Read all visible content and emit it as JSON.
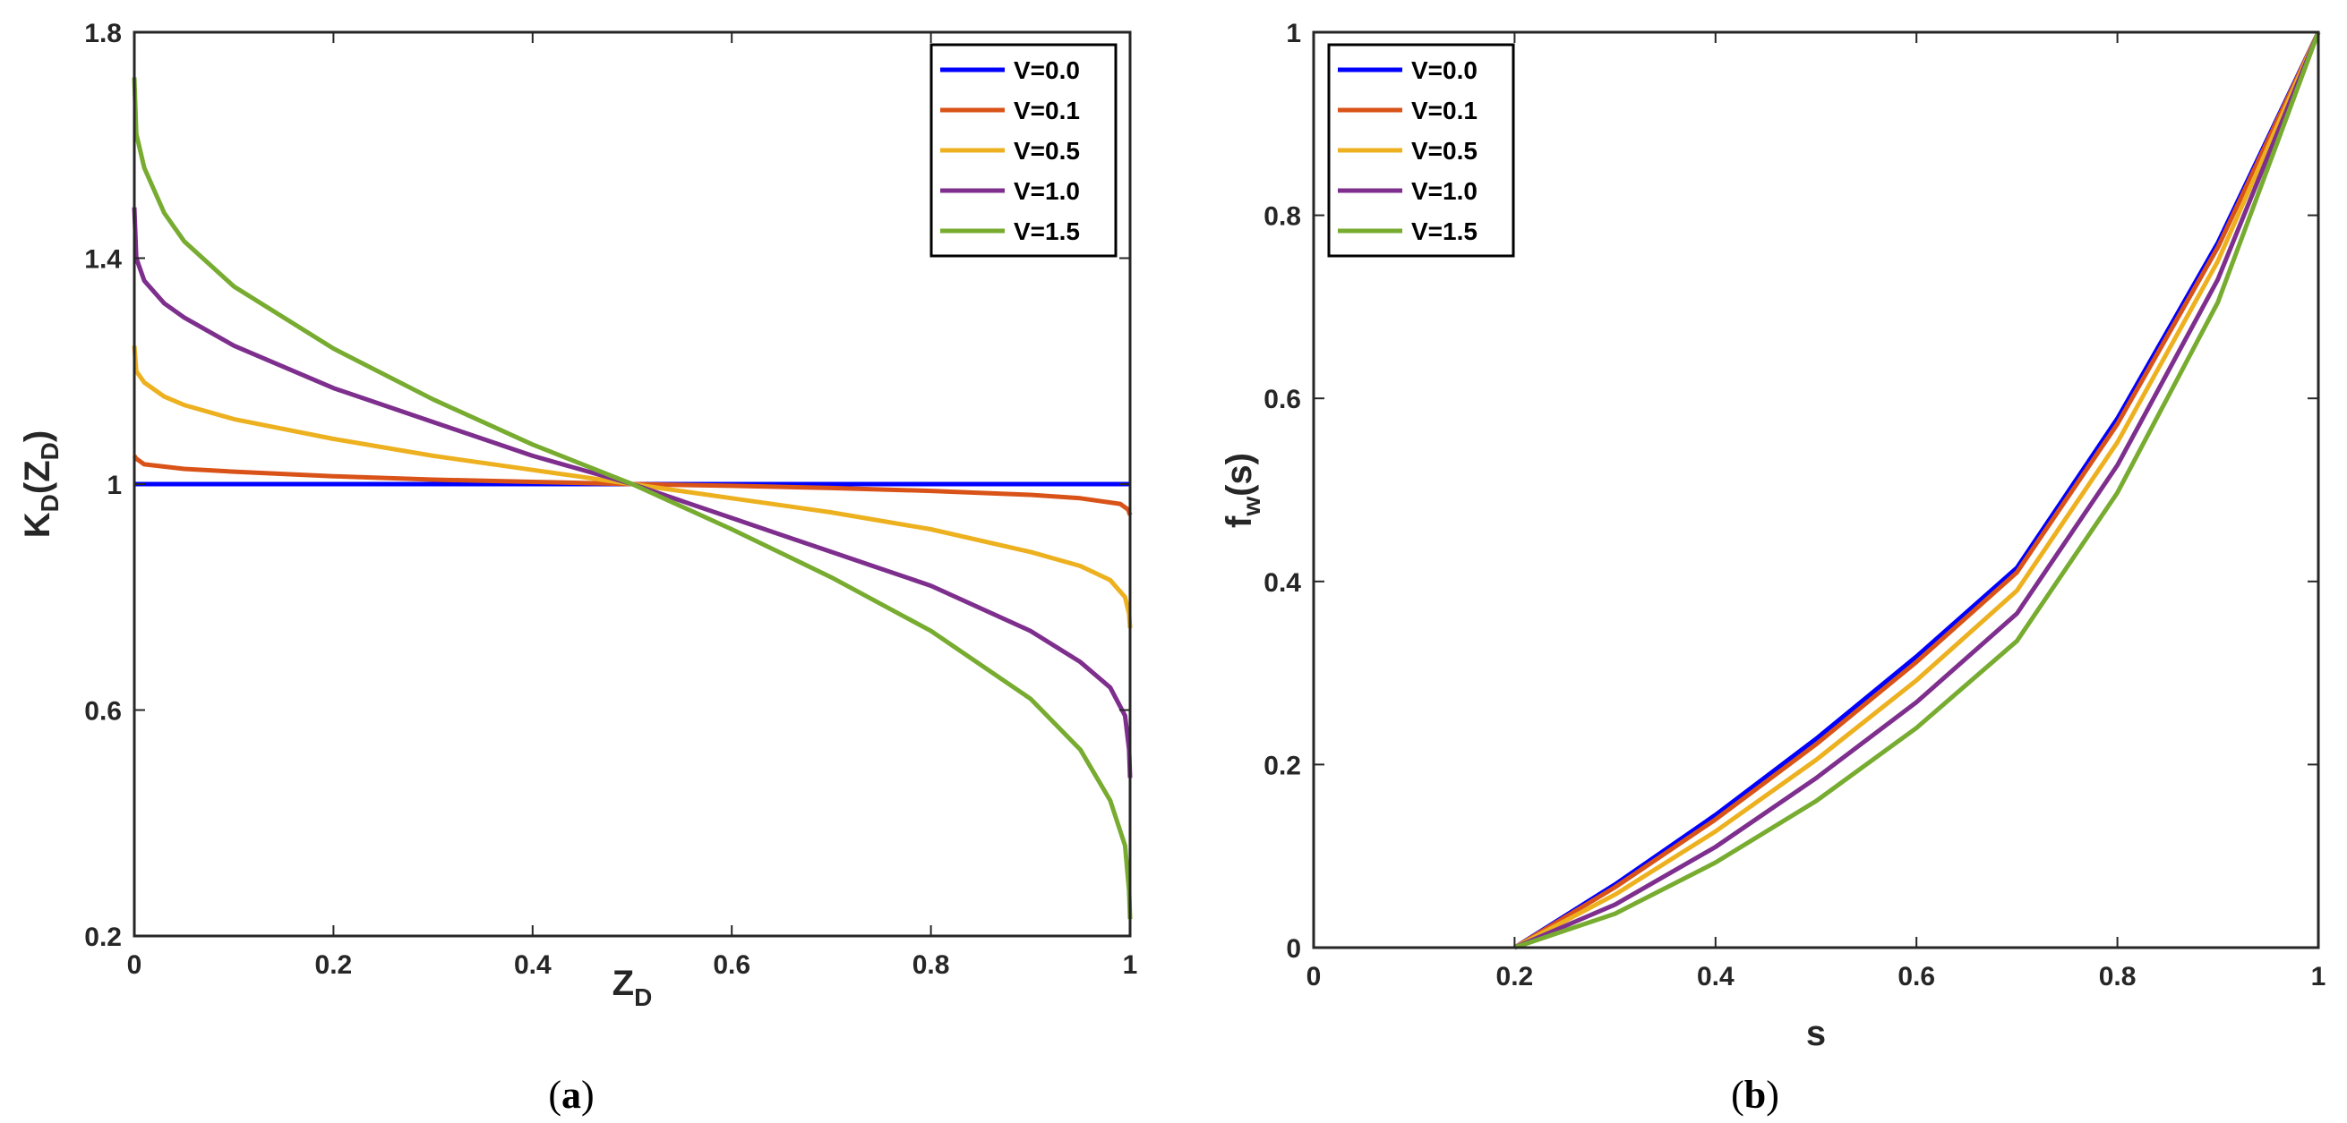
{
  "chart_data": [
    {
      "type": "line",
      "panel": "a",
      "caption_prefix": "(",
      "caption_letter": "a",
      "caption_suffix": ")",
      "xlabel_main": "Z",
      "xlabel_sub": "D",
      "ylabel_main": "K",
      "ylabel_sub": "D",
      "ylabel_open": "(Z",
      "ylabel_inner_sub": "D",
      "ylabel_close": ")",
      "xlim": [
        0,
        1
      ],
      "ylim": [
        0.2,
        1.8
      ],
      "xticks": [
        0,
        0.2,
        0.4,
        0.6,
        0.8,
        1
      ],
      "xtick_labels": [
        "0",
        "0.2",
        "0.4",
        "0.6",
        "0.8",
        "1"
      ],
      "yticks": [
        0.2,
        0.6,
        1,
        1.4,
        1.8
      ],
      "ytick_labels": [
        "0.2",
        "0.6",
        "1",
        "1.4",
        "1.8"
      ],
      "legend_position": "top-right",
      "series": [
        {
          "name": "V=0.0",
          "color": "#0000FF",
          "x": [
            0,
            0.01,
            0.05,
            0.1,
            0.2,
            0.3,
            0.4,
            0.5,
            0.6,
            0.7,
            0.8,
            0.9,
            0.95,
            0.99,
            1.0
          ],
          "values": [
            1,
            1,
            1,
            1,
            1,
            1,
            1,
            1,
            1,
            1,
            1,
            1,
            1,
            1,
            1
          ]
        },
        {
          "name": "V=0.1",
          "color": "#D95319",
          "x": [
            0,
            0.002,
            0.01,
            0.05,
            0.1,
            0.2,
            0.3,
            0.4,
            0.5,
            0.6,
            0.7,
            0.8,
            0.9,
            0.95,
            0.99,
            0.998,
            1.0
          ],
          "values": [
            1.05,
            1.045,
            1.035,
            1.027,
            1.022,
            1.014,
            1.008,
            1.004,
            1.0,
            0.997,
            0.993,
            0.988,
            0.981,
            0.975,
            0.965,
            0.955,
            0.945
          ]
        },
        {
          "name": "V=0.5",
          "color": "#EDB120",
          "x": [
            0,
            0.002,
            0.01,
            0.03,
            0.05,
            0.1,
            0.2,
            0.3,
            0.4,
            0.5,
            0.6,
            0.7,
            0.8,
            0.9,
            0.95,
            0.98,
            0.995,
            0.999,
            1.0
          ],
          "values": [
            1.245,
            1.2,
            1.18,
            1.155,
            1.14,
            1.115,
            1.08,
            1.05,
            1.025,
            1.0,
            0.975,
            0.95,
            0.92,
            0.88,
            0.855,
            0.83,
            0.8,
            0.77,
            0.745
          ]
        },
        {
          "name": "V=1.0",
          "color": "#7E2F8E",
          "x": [
            0,
            0.002,
            0.01,
            0.03,
            0.05,
            0.1,
            0.2,
            0.3,
            0.4,
            0.5,
            0.6,
            0.7,
            0.8,
            0.9,
            0.95,
            0.98,
            0.995,
            0.999,
            1.0
          ],
          "values": [
            1.49,
            1.4,
            1.36,
            1.32,
            1.295,
            1.245,
            1.17,
            1.11,
            1.05,
            1.0,
            0.94,
            0.88,
            0.82,
            0.74,
            0.685,
            0.64,
            0.59,
            0.53,
            0.48
          ]
        },
        {
          "name": "V=1.5",
          "color": "#77AC30",
          "x": [
            0,
            0.002,
            0.01,
            0.03,
            0.05,
            0.1,
            0.2,
            0.3,
            0.4,
            0.5,
            0.6,
            0.7,
            0.8,
            0.9,
            0.95,
            0.98,
            0.995,
            0.999,
            1.0
          ],
          "values": [
            1.72,
            1.62,
            1.56,
            1.48,
            1.43,
            1.35,
            1.24,
            1.15,
            1.07,
            1.0,
            0.92,
            0.835,
            0.74,
            0.62,
            0.53,
            0.44,
            0.36,
            0.28,
            0.23
          ]
        }
      ]
    },
    {
      "type": "line",
      "panel": "b",
      "caption_prefix": "(",
      "caption_letter": "b",
      "caption_suffix": ")",
      "xlabel_main": "s",
      "ylabel_main": "f",
      "ylabel_sub": "w",
      "ylabel_rest": "(s)",
      "xlim": [
        0,
        1
      ],
      "ylim": [
        0,
        1
      ],
      "xticks": [
        0,
        0.2,
        0.4,
        0.6,
        0.8,
        1
      ],
      "xtick_labels": [
        "0",
        "0.2",
        "0.4",
        "0.6",
        "0.8",
        "1"
      ],
      "yticks": [
        0,
        0.2,
        0.4,
        0.6,
        0.8,
        1
      ],
      "ytick_labels": [
        "0",
        "0.2",
        "0.4",
        "0.6",
        "0.8",
        "1"
      ],
      "legend_position": "top-left",
      "series": [
        {
          "name": "V=0.0",
          "color": "#0000FF",
          "x": [
            0.2,
            0.3,
            0.4,
            0.5,
            0.6,
            0.7,
            0.8,
            0.9,
            1.0
          ],
          "values": [
            0,
            0.069,
            0.145,
            0.228,
            0.318,
            0.415,
            0.578,
            0.77,
            1.0
          ]
        },
        {
          "name": "V=0.1",
          "color": "#D95319",
          "x": [
            0.2,
            0.3,
            0.4,
            0.5,
            0.6,
            0.7,
            0.8,
            0.9,
            1.0
          ],
          "values": [
            0,
            0.066,
            0.14,
            0.222,
            0.312,
            0.41,
            0.572,
            0.765,
            1.0
          ]
        },
        {
          "name": "V=0.5",
          "color": "#EDB120",
          "x": [
            0.2,
            0.3,
            0.4,
            0.5,
            0.6,
            0.7,
            0.8,
            0.9,
            1.0
          ],
          "values": [
            0,
            0.058,
            0.127,
            0.205,
            0.292,
            0.39,
            0.552,
            0.75,
            1.0
          ]
        },
        {
          "name": "V=1.0",
          "color": "#7E2F8E",
          "x": [
            0.2,
            0.3,
            0.4,
            0.5,
            0.6,
            0.7,
            0.8,
            0.9,
            1.0
          ],
          "values": [
            0,
            0.047,
            0.11,
            0.185,
            0.268,
            0.365,
            0.527,
            0.73,
            1.0
          ]
        },
        {
          "name": "V=1.5",
          "color": "#77AC30",
          "x": [
            0.2,
            0.3,
            0.4,
            0.5,
            0.6,
            0.7,
            0.8,
            0.9,
            1.0
          ],
          "values": [
            0,
            0.037,
            0.093,
            0.16,
            0.24,
            0.335,
            0.497,
            0.705,
            1.0
          ]
        }
      ]
    }
  ]
}
